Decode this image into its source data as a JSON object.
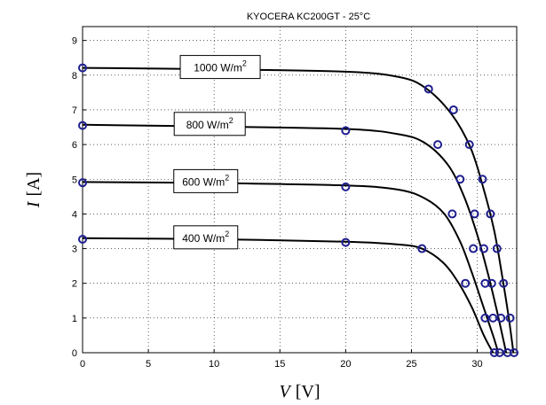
{
  "chart_data": {
    "type": "line",
    "title": "KYOCERA KC200GT - 25°C",
    "xlabel": {
      "symbol": "V",
      "unit": "[V]"
    },
    "ylabel": {
      "symbol": "I",
      "unit": "[A]"
    },
    "xlim": [
      0,
      33
    ],
    "ylim": [
      0,
      9.4
    ],
    "xticks": [
      0,
      5,
      10,
      15,
      20,
      25,
      30
    ],
    "yticks": [
      0,
      1,
      2,
      3,
      4,
      5,
      6,
      7,
      8,
      9
    ],
    "grid": true,
    "line_color": "#000000",
    "marker_color": "#1f1f8f",
    "series": [
      {
        "name": "1000 W/m",
        "exp": "2",
        "curve": [
          [
            0,
            8.21
          ],
          [
            10,
            8.17
          ],
          [
            20,
            8.1
          ],
          [
            24,
            7.95
          ],
          [
            26,
            7.65
          ],
          [
            28,
            6.9
          ],
          [
            29.5,
            5.9
          ],
          [
            30.5,
            4.7
          ],
          [
            31.3,
            3.5
          ],
          [
            31.9,
            2.2
          ],
          [
            32.4,
            1.0
          ],
          [
            32.75,
            0
          ]
        ],
        "points": [
          [
            0,
            8.21
          ],
          [
            10,
            8.15
          ],
          [
            26.3,
            7.6
          ],
          [
            28.2,
            7.0
          ],
          [
            29.4,
            6.0
          ],
          [
            30.4,
            5.0
          ],
          [
            31.0,
            4.0
          ],
          [
            31.5,
            3.0
          ],
          [
            32.0,
            2.0
          ],
          [
            32.5,
            1.0
          ],
          [
            32.8,
            0
          ]
        ]
      },
      {
        "name": "800 W/m",
        "exp": "2",
        "curve": [
          [
            0,
            6.57
          ],
          [
            10,
            6.52
          ],
          [
            20,
            6.45
          ],
          [
            24,
            6.3
          ],
          [
            26,
            6.05
          ],
          [
            27.8,
            5.4
          ],
          [
            29,
            4.5
          ],
          [
            30,
            3.4
          ],
          [
            30.8,
            2.3
          ],
          [
            31.5,
            1.2
          ],
          [
            32.2,
            0
          ]
        ],
        "points": [
          [
            0,
            6.55
          ],
          [
            10,
            6.48
          ],
          [
            20,
            6.4
          ],
          [
            27.0,
            6.0
          ],
          [
            28.7,
            5.0
          ],
          [
            29.8,
            4.0
          ],
          [
            30.5,
            3.0
          ],
          [
            31.1,
            2.0
          ],
          [
            31.8,
            1.0
          ],
          [
            32.3,
            0
          ]
        ]
      },
      {
        "name": "600 W/m",
        "exp": "2",
        "curve": [
          [
            0,
            4.92
          ],
          [
            10,
            4.89
          ],
          [
            20,
            4.82
          ],
          [
            24,
            4.7
          ],
          [
            26,
            4.45
          ],
          [
            27.5,
            4.0
          ],
          [
            28.7,
            3.2
          ],
          [
            29.6,
            2.3
          ],
          [
            30.4,
            1.4
          ],
          [
            31.2,
            0.5
          ],
          [
            31.6,
            0
          ]
        ],
        "points": [
          [
            0,
            4.9
          ],
          [
            10,
            4.87
          ],
          [
            20,
            4.78
          ],
          [
            28.1,
            4.0
          ],
          [
            29.7,
            3.0
          ],
          [
            30.6,
            2.0
          ],
          [
            31.2,
            1.0
          ],
          [
            31.7,
            0
          ]
        ]
      },
      {
        "name": "400 W/m",
        "exp": "2",
        "curve": [
          [
            0,
            3.3
          ],
          [
            10,
            3.27
          ],
          [
            20,
            3.2
          ],
          [
            24,
            3.12
          ],
          [
            25.8,
            3.0
          ],
          [
            27.4,
            2.6
          ],
          [
            28.6,
            2.0
          ],
          [
            29.6,
            1.3
          ],
          [
            30.5,
            0.5
          ],
          [
            31.2,
            0
          ]
        ],
        "points": [
          [
            0,
            3.27
          ],
          [
            10,
            3.24
          ],
          [
            20,
            3.18
          ],
          [
            25.8,
            3.0
          ],
          [
            29.1,
            2.0
          ],
          [
            30.6,
            1.0
          ],
          [
            31.3,
            0
          ]
        ]
      }
    ]
  }
}
